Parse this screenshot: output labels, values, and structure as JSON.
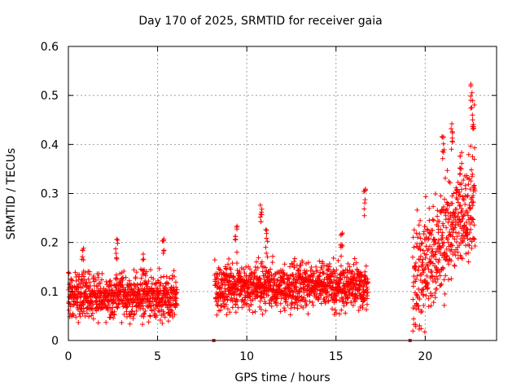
{
  "chart_data": {
    "type": "scatter",
    "title": "Day 170 of 2025, SRMTID for receiver gaia",
    "xlabel": "GPS time / hours",
    "ylabel": "SRMTID / TECUs",
    "xlim": [
      0,
      24
    ],
    "ylim": [
      0,
      0.6
    ],
    "xticks": [
      0,
      5,
      10,
      15,
      20
    ],
    "yticks": [
      0,
      0.1,
      0.2,
      0.3,
      0.4,
      0.5,
      0.6
    ],
    "xtick_labels": [
      "0",
      "5",
      "10",
      "15",
      "20"
    ],
    "ytick_labels": [
      "0",
      "0.1",
      "0.2",
      "0.3",
      "0.4",
      "0.5",
      "0.6"
    ],
    "grid": true,
    "marker": "+",
    "color": "#ff0000",
    "series": [
      {
        "name": "SRMTID",
        "segments": [
          {
            "x_start": 0.0,
            "x_end": 6.1,
            "typical": 0.09,
            "spread": 0.05,
            "spikes": [
              [
                0.8,
                0.19
              ],
              [
                2.7,
                0.22
              ],
              [
                5.3,
                0.22
              ],
              [
                4.2,
                0.18
              ]
            ]
          },
          {
            "x_start": 8.2,
            "x_end": 16.8,
            "typical": 0.11,
            "spread": 0.05,
            "spikes": [
              [
                9.4,
                0.24
              ],
              [
                10.8,
                0.295
              ],
              [
                11.1,
                0.23
              ],
              [
                15.3,
                0.23
              ],
              [
                16.6,
                0.31
              ]
            ]
          },
          {
            "x_start": 19.3,
            "x_end": 22.8,
            "typical": 0.22,
            "spread": 0.12,
            "spikes": [
              [
                21.0,
                0.42
              ],
              [
                21.5,
                0.45
              ],
              [
                22.6,
                0.525
              ],
              [
                22.7,
                0.49
              ],
              [
                22.0,
                0.39
              ]
            ]
          }
        ],
        "isolated_points": [
          [
            8.15,
            0.0
          ],
          [
            19.15,
            0.0
          ]
        ]
      }
    ]
  }
}
